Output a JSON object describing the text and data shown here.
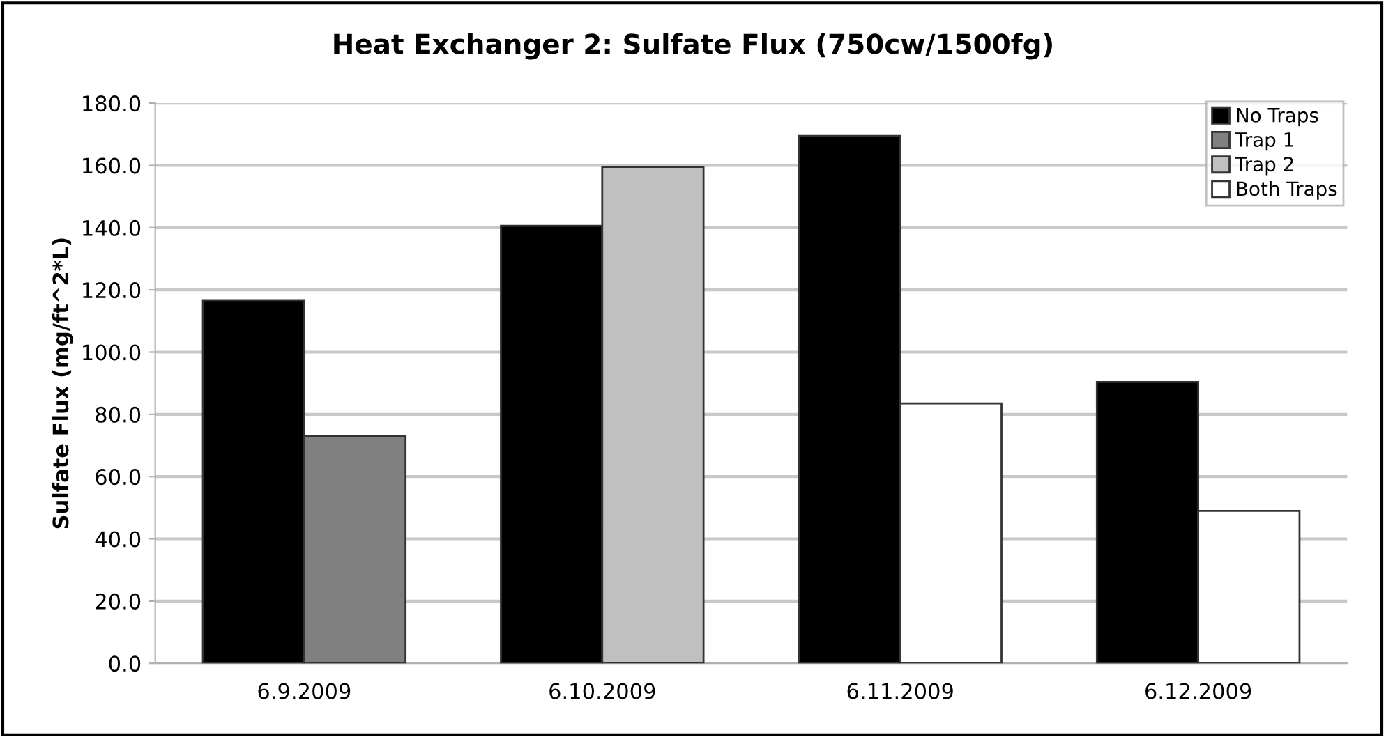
{
  "chart_data": {
    "type": "bar",
    "title": "Heat Exchanger 2: Sulfate Flux (750cw/1500fg)",
    "ylabel": "Sulfate Flux (mg/ft^2*L)",
    "categories": [
      "6.9.2009",
      "6.10.2009",
      "6.11.2009",
      "6.12.2009"
    ],
    "series": [
      {
        "name": "No Traps",
        "color": "#000000",
        "values": [
          116.7,
          140.6,
          169.5,
          90.4
        ]
      },
      {
        "name": "Trap 1",
        "color": "#808080",
        "values": [
          73.1,
          null,
          null,
          null
        ]
      },
      {
        "name": "Trap 2",
        "color": "#c0c0c0",
        "values": [
          null,
          159.5,
          null,
          null
        ]
      },
      {
        "name": "Both Traps",
        "color": "#ffffff",
        "values": [
          null,
          null,
          83.5,
          49.0
        ]
      }
    ],
    "ylim": [
      0,
      180
    ],
    "yticks": [
      {
        "value": 0,
        "label": "0.0"
      },
      {
        "value": 20,
        "label": "20.0"
      },
      {
        "value": 40,
        "label": "40.0"
      },
      {
        "value": 60,
        "label": "60.0"
      },
      {
        "value": 80,
        "label": "80.0"
      },
      {
        "value": 100,
        "label": "100.0"
      },
      {
        "value": 120,
        "label": "120.0"
      },
      {
        "value": 140,
        "label": "140.0"
      },
      {
        "value": 160,
        "label": "160.0"
      },
      {
        "value": 180,
        "label": "180.0"
      }
    ],
    "grid": "y",
    "legend": "top right"
  }
}
